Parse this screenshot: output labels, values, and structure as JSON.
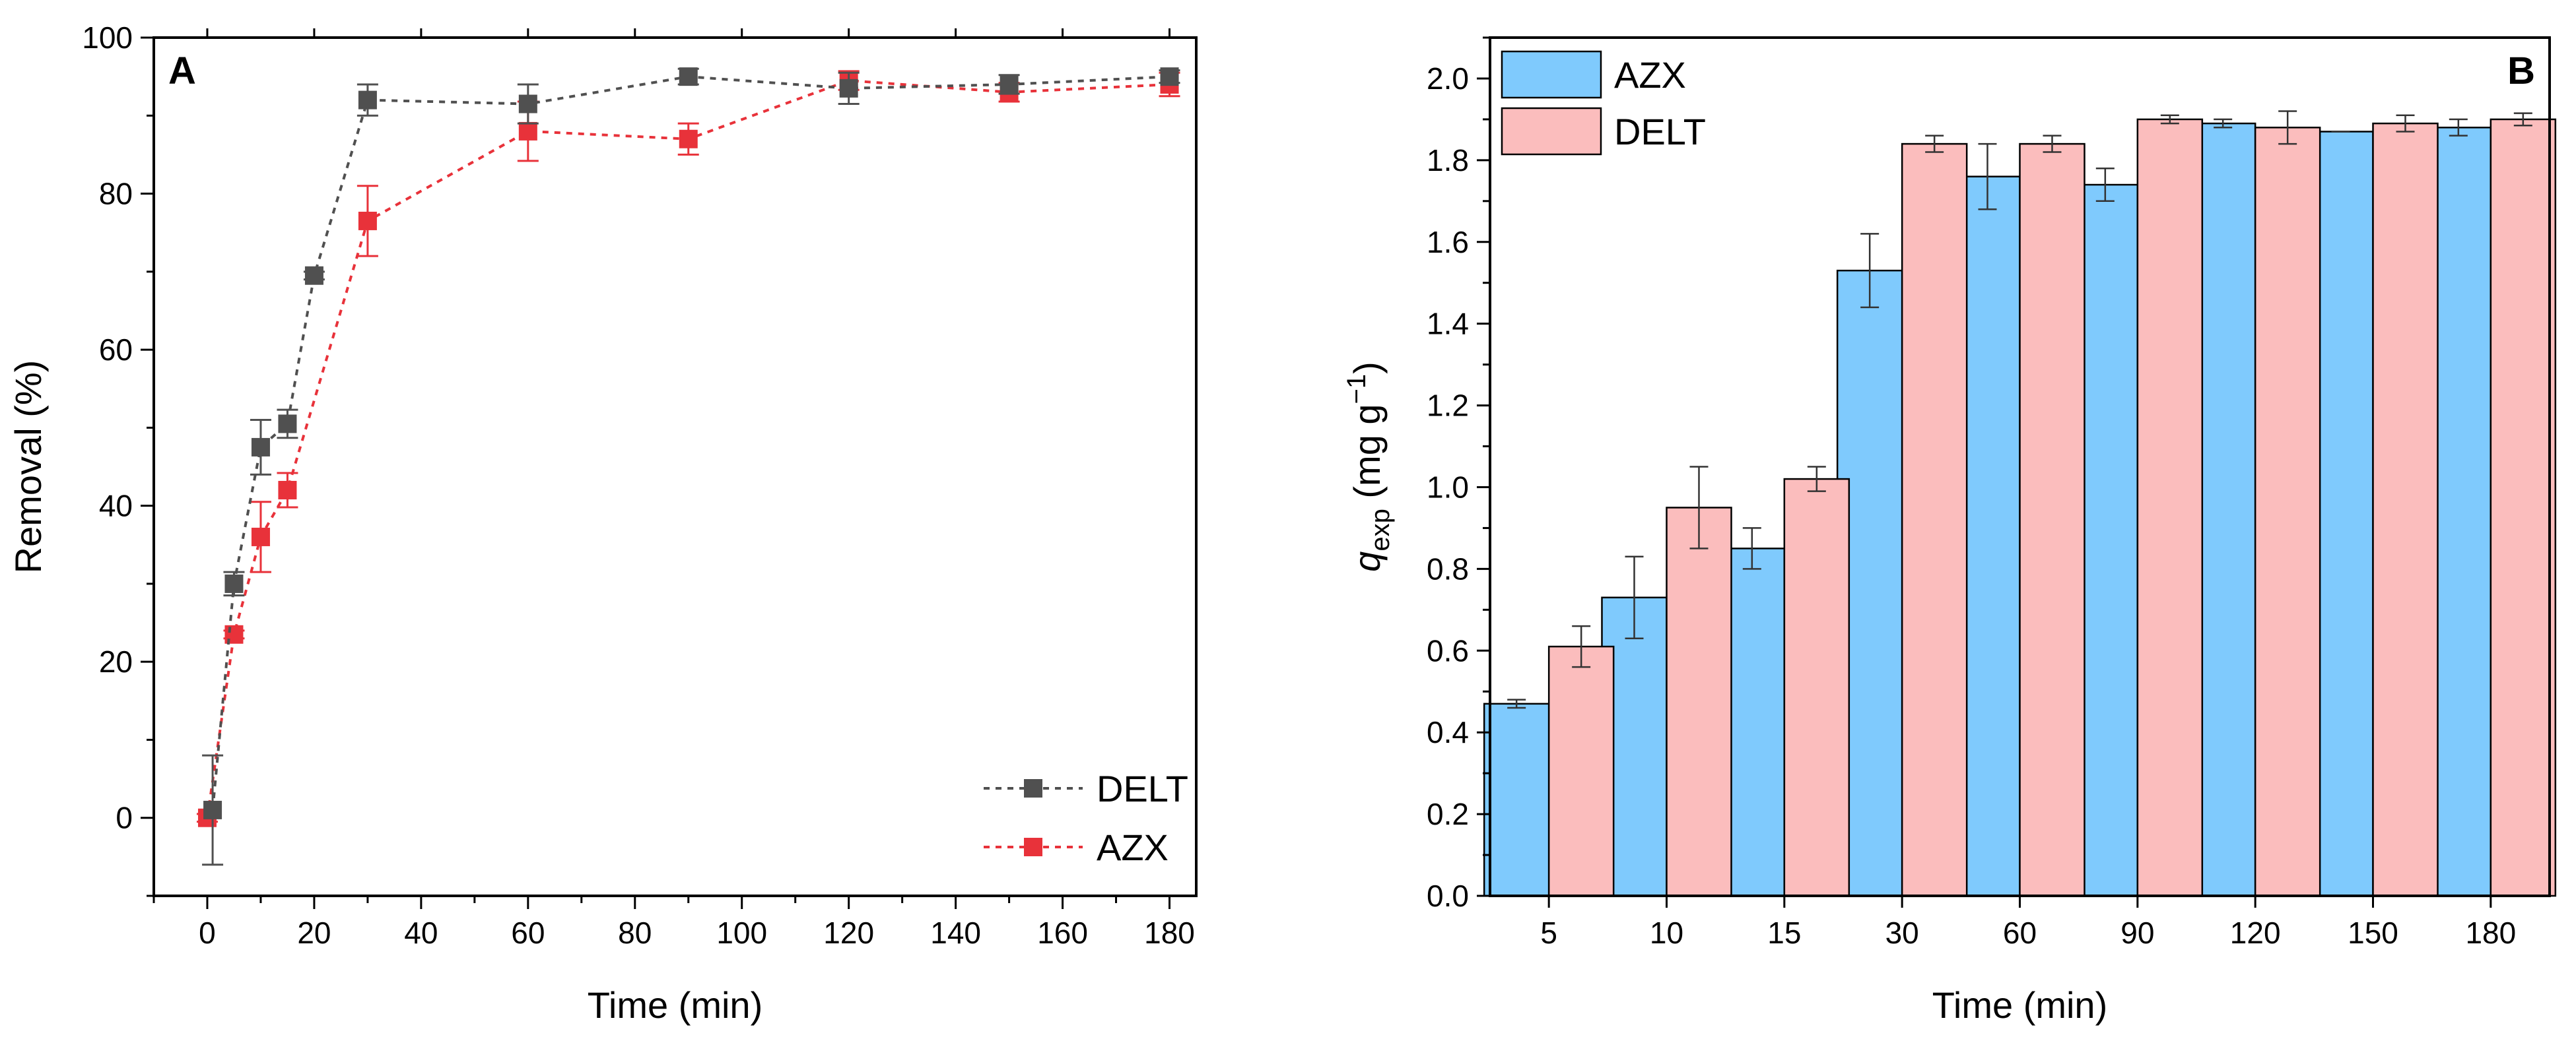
{
  "colors": {
    "delt_line": "#505050",
    "azx_line": "#e8323a",
    "azx_bar": "#7fcafd",
    "delt_bar": "#fbbdbd",
    "bar_edge": "#000000"
  },
  "chart_data": [
    {
      "type": "line",
      "panel_label": "A",
      "title": "",
      "xlabel": "Time (min)",
      "ylabel": "Removal (%)",
      "xlim": [
        -10,
        185
      ],
      "ylim": [
        -10,
        100
      ],
      "xticks": [
        0,
        20,
        40,
        60,
        80,
        100,
        120,
        140,
        160,
        180
      ],
      "yticks": [
        0,
        20,
        40,
        60,
        80,
        100
      ],
      "tick_labels_x": [
        "0",
        "20",
        "40",
        "60",
        "80",
        "100",
        "120",
        "140",
        "160",
        "180"
      ],
      "tick_labels_y": [
        "0",
        "20",
        "40",
        "60",
        "80",
        "100"
      ],
      "legend_position": "bottom-right",
      "grid": false,
      "series": [
        {
          "name": "DELT",
          "color": "#505050",
          "x": [
            1,
            5,
            10,
            15,
            20,
            30,
            60,
            90,
            120,
            150,
            180
          ],
          "y": [
            1,
            30,
            47.5,
            50.5,
            69.5,
            92,
            91.5,
            95,
            93.5,
            94,
            95
          ],
          "err": [
            7,
            1.5,
            3.5,
            1.8,
            0.5,
            2,
            2.5,
            1,
            2,
            1.2,
            0.8
          ]
        },
        {
          "name": "AZX",
          "color": "#e8323a",
          "x": [
            0,
            5,
            10,
            15,
            30,
            60,
            90,
            120,
            150,
            180
          ],
          "y": [
            0,
            23.5,
            36,
            42,
            76.5,
            88,
            87,
            94.5,
            93,
            94
          ],
          "err": [
            0.5,
            0.5,
            4.5,
            2.2,
            4.5,
            3.8,
            2,
            1.2,
            1.2,
            1.5
          ]
        }
      ]
    },
    {
      "type": "bar",
      "panel_label": "B",
      "title": "",
      "xlabel": "Time (min)",
      "ylabel_main": "q",
      "ylabel_sub": "exp",
      "ylabel_unit_prefix": "(mg g",
      "ylabel_unit_sup": "−1",
      "ylabel_unit_suffix": ")",
      "ylim": [
        0,
        2.1
      ],
      "yticks": [
        0.0,
        0.2,
        0.4,
        0.6,
        0.8,
        1.0,
        1.2,
        1.4,
        1.6,
        1.8,
        2.0
      ],
      "tick_labels_y": [
        "0.0",
        "0.2",
        "0.4",
        "0.6",
        "0.8",
        "1.0",
        "1.2",
        "1.4",
        "1.6",
        "1.8",
        "2.0"
      ],
      "categories": [
        "5",
        "10",
        "15",
        "30",
        "60",
        "90",
        "120",
        "150",
        "180"
      ],
      "legend_position": "top-left",
      "grid": false,
      "series": [
        {
          "name": "AZX",
          "color": "#7fcafd",
          "values": [
            0.47,
            0.73,
            0.85,
            1.53,
            1.76,
            1.74,
            1.89,
            1.87,
            1.88
          ],
          "err": [
            0.01,
            0.1,
            0.05,
            0.09,
            0.08,
            0.04,
            0.01,
            0.0,
            0.02
          ]
        },
        {
          "name": "DELT",
          "color": "#fbbdbd",
          "values": [
            0.61,
            0.95,
            1.02,
            1.84,
            1.84,
            1.9,
            1.88,
            1.89,
            1.9
          ],
          "err": [
            0.05,
            0.1,
            0.03,
            0.02,
            0.02,
            0.01,
            0.04,
            0.02,
            0.015
          ]
        }
      ]
    }
  ]
}
